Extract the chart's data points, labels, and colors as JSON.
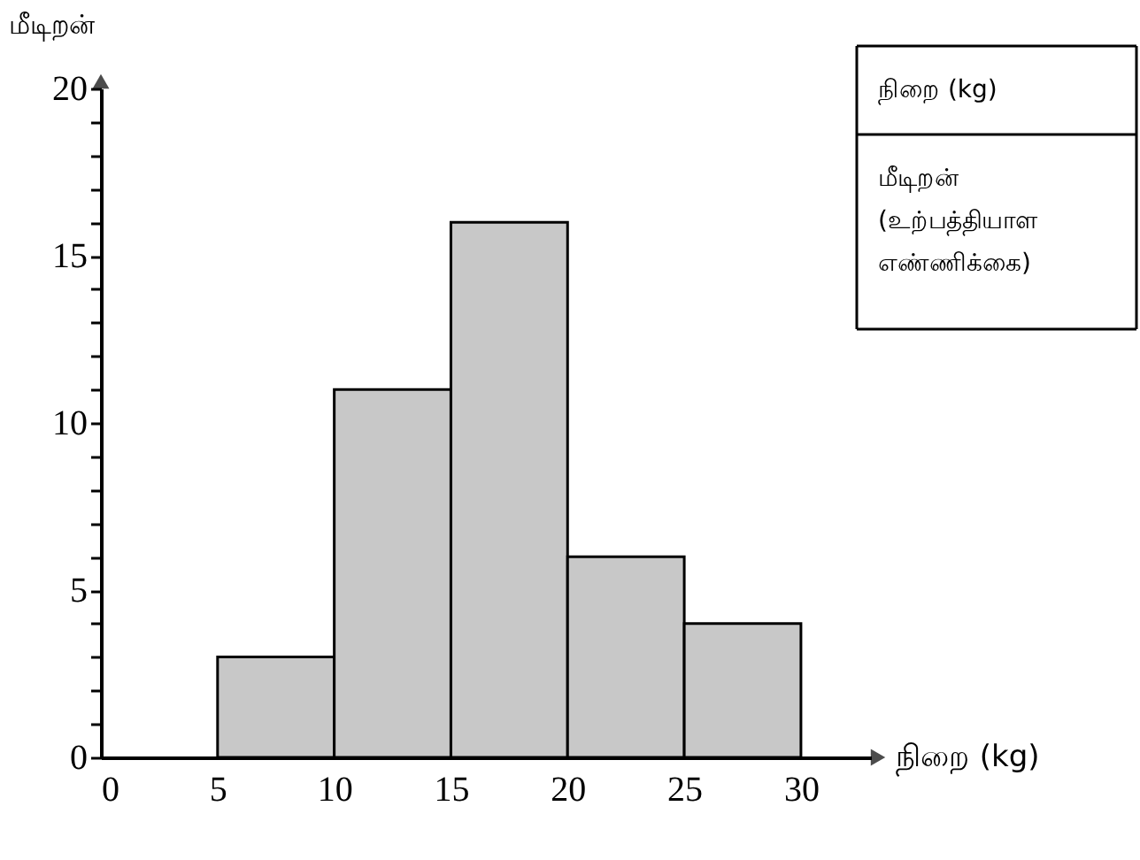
{
  "chart_data": {
    "type": "histogram",
    "xlabel": "நிறை (kg)",
    "ylabel": "மீடிறன்",
    "bins": [
      5,
      10,
      15,
      20,
      25,
      30
    ],
    "values": [
      3,
      11,
      16,
      6,
      4
    ],
    "color": "#c8c8c8",
    "xlim": [
      0,
      33
    ],
    "xticks": [
      0,
      5,
      10,
      15,
      20,
      25,
      30
    ],
    "ylim": [
      0,
      20
    ],
    "yticks": [
      0,
      {
        "value": 1,
        "label": null
      },
      {
        "value": 2,
        "label": null
      },
      {
        "value": 3,
        "label": null
      },
      {
        "value": 4,
        "label": null
      },
      5,
      {
        "value": 6,
        "label": null
      },
      {
        "value": 7,
        "label": null
      },
      {
        "value": 8,
        "label": null
      },
      {
        "value": 9,
        "label": null
      },
      10,
      {
        "value": 11,
        "label": null
      },
      {
        "value": 12,
        "label": null
      },
      {
        "value": 13,
        "label": null
      },
      {
        "value": 14,
        "label": null
      },
      15,
      {
        "value": 16,
        "label": null
      },
      {
        "value": 17,
        "label": null
      },
      {
        "value": 18,
        "label": null
      },
      {
        "value": 19,
        "label": null
      },
      20
    ],
    "annotations": [
      "நிறை (kg)",
      "மீடிறன் (உற்பத்தியாள எண்ணிக்கை)"
    ]
  }
}
